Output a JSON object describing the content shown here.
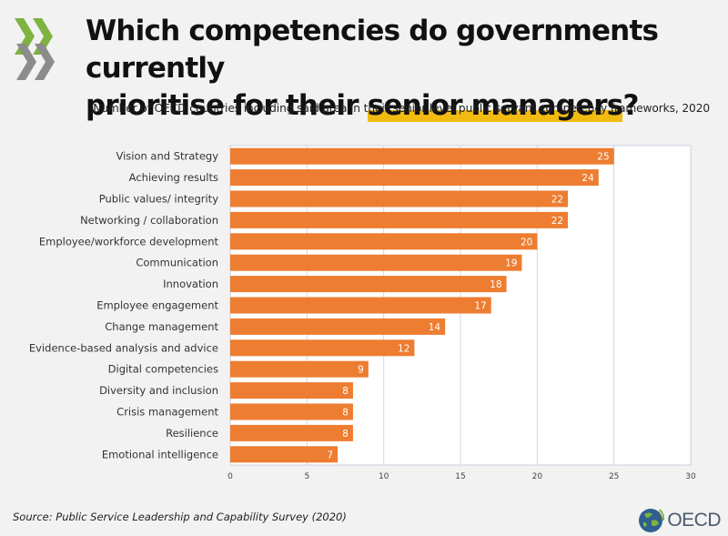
{
  "title": {
    "line1": "Which competencies do governments currently",
    "line2_pre": "prioritise for their ",
    "line2_highlight": "senior managers",
    "line2_post": "?"
  },
  "subtitle": "Number of OECD countries including said area in their senior-level public servant competency frameworks, 2020",
  "source": "Source: Public Service Leadership and Capability Survey (2020)",
  "logo_text": "OECD",
  "colors": {
    "bar": "#ed7d31",
    "highlight": "#f2bb12",
    "background": "#f2f2f2",
    "plot_background": "#ffffff",
    "logo_text": "#4b5a6b"
  },
  "chart_data": {
    "type": "bar",
    "orientation": "horizontal",
    "categories": [
      "Vision and Strategy",
      "Achieving results",
      "Public values/ integrity",
      "Networking / collaboration",
      "Employee/workforce development",
      "Communication",
      "Innovation",
      "Employee engagement",
      "Change management",
      "Evidence-based analysis and advice",
      "Digital competencies",
      "Diversity and inclusion",
      "Crisis management",
      "Resilience",
      "Emotional intelligence"
    ],
    "values": [
      25,
      24,
      22,
      22,
      20,
      19,
      18,
      17,
      14,
      12,
      9,
      8,
      8,
      8,
      7
    ],
    "xlim": [
      0,
      30
    ],
    "xticks": [
      0,
      5,
      10,
      15,
      20,
      25,
      30
    ],
    "grid": true,
    "data_labels": true
  }
}
